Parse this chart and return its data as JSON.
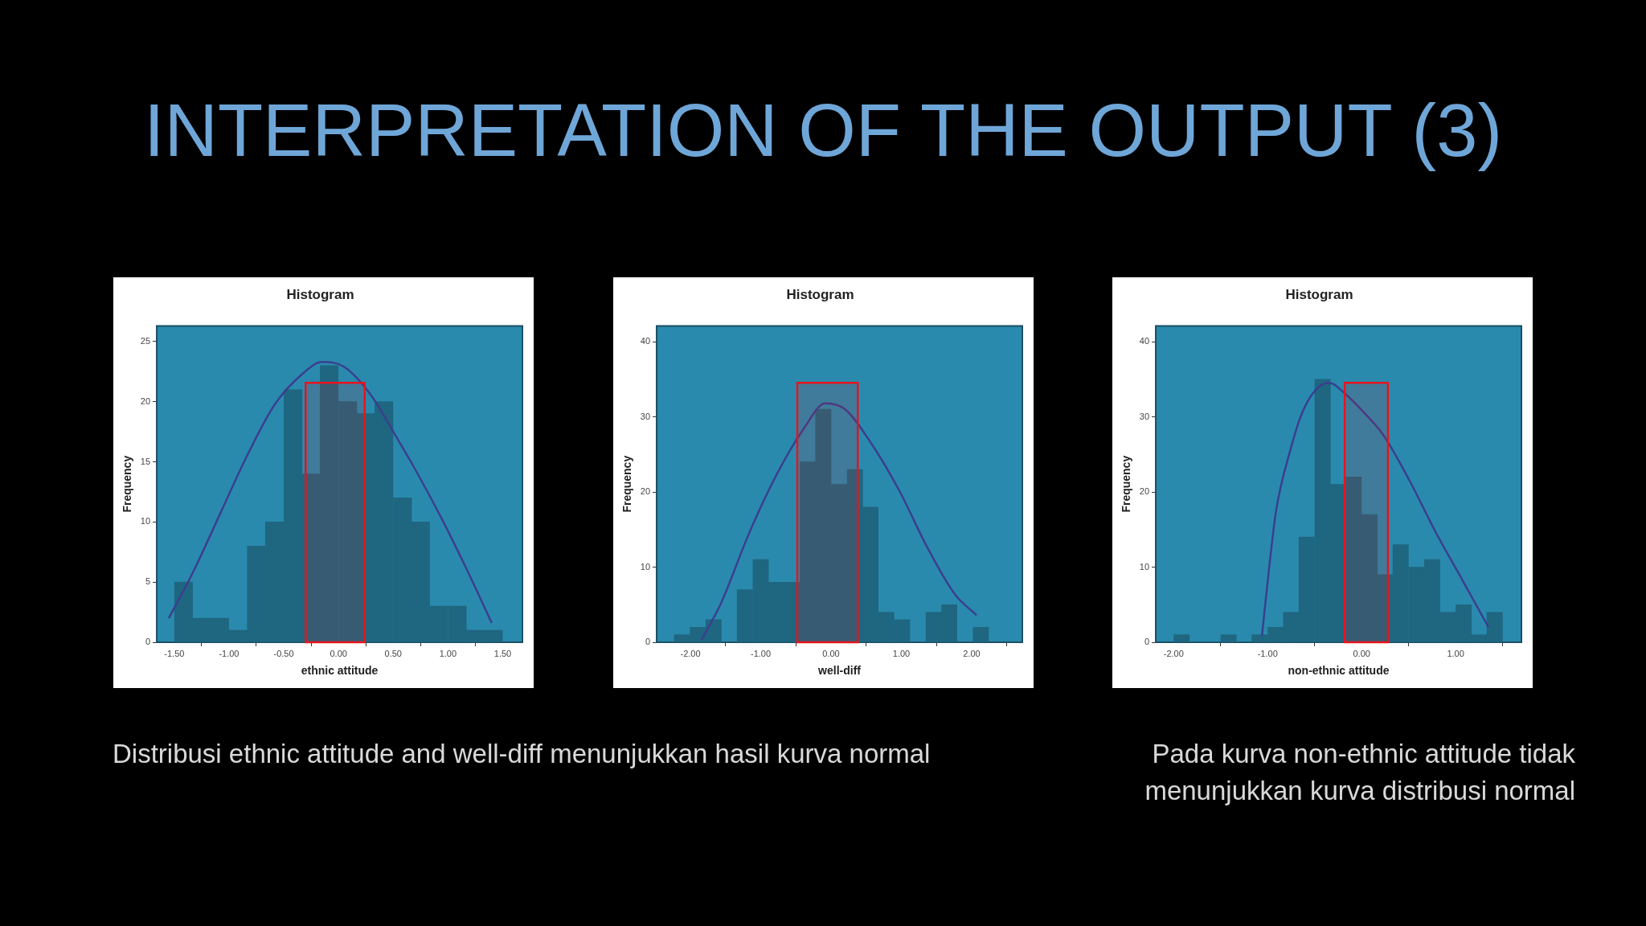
{
  "chart_data": [
    {
      "type": "histogram",
      "title": "Histogram",
      "xlabel": "ethnic attitude",
      "ylabel": "Frequency",
      "color": "#1f6680",
      "bins": [
        -1.5,
        -1.33,
        -1.17,
        -1.0,
        -0.83,
        -0.67,
        -0.5,
        -0.33,
        -0.17,
        0,
        0.17,
        0.33,
        0.5,
        0.67,
        0.83,
        1.0,
        1.17,
        1.33,
        1.5
      ],
      "values": [
        5,
        2,
        2,
        1,
        8,
        10,
        21,
        14,
        23,
        20,
        19,
        20,
        12,
        10,
        3,
        3,
        1,
        1
      ],
      "series": [
        {
          "type": "line",
          "color": "#3b3f8e",
          "x": [
            -1.55,
            -1.33,
            -1.08,
            -0.83,
            -0.58,
            -0.33,
            -0.15,
            0.05,
            0.3,
            0.52,
            0.68,
            0.93,
            1.18,
            1.4
          ],
          "values": [
            2.0,
            5.8,
            10.7,
            15.6,
            19.8,
            22.3,
            23.3,
            22.9,
            20.5,
            17.2,
            14.7,
            10.5,
            5.9,
            1.6
          ]
        }
      ],
      "xlim": [
        -1.66,
        1.68
      ],
      "xticks": [
        {
          "value": -1.5,
          "label": "-1.50"
        },
        {
          "value": -1,
          "label": "-1.00"
        },
        {
          "value": -0.5,
          "label": "-0.50"
        },
        {
          "value": 0,
          "label": "0.00"
        },
        {
          "value": 0.5,
          "label": "0.50"
        },
        {
          "value": 1,
          "label": "1.00"
        },
        {
          "value": 1.5,
          "label": "1.50"
        }
      ],
      "ylim": [
        0,
        26.3
      ],
      "yticks": [
        0,
        5,
        10,
        15,
        20,
        25
      ],
      "bands": [
        {
          "axis": "x",
          "from": -0.3,
          "to": 0.24,
          "color": "#e8141c"
        }
      ]
    },
    {
      "type": "histogram",
      "title": "Histogram",
      "xlabel": "well-diff",
      "ylabel": "Frequency",
      "color": "#1f6680",
      "bins": [
        -2.23,
        -2.01,
        -1.78,
        -1.56,
        -1.34,
        -1.11,
        -0.89,
        -0.67,
        -0.44,
        -0.22,
        0.0,
        0.23,
        0.45,
        0.67,
        0.9,
        1.12,
        1.35,
        1.57,
        1.79,
        2.02,
        2.24
      ],
      "values": [
        1,
        2,
        3,
        0,
        7,
        11,
        8,
        8,
        24,
        31,
        21,
        23,
        18,
        4,
        3,
        0,
        4,
        5,
        0,
        2
      ],
      "series": [
        {
          "type": "line",
          "color": "#3b3f8e",
          "x": [
            -1.84,
            -1.56,
            -1.17,
            -0.78,
            -0.39,
            -0.08,
            0.2,
            0.59,
            0.98,
            1.37,
            1.76,
            2.07
          ],
          "values": [
            0.3,
            5.3,
            14.4,
            22.2,
            28.4,
            31.8,
            31.0,
            26.2,
            20.0,
            12.6,
            6.4,
            3.6
          ]
        }
      ],
      "xlim": [
        -2.48,
        2.72
      ],
      "xticks": [
        {
          "value": -2,
          "label": "-2.00"
        },
        {
          "value": -1,
          "label": "-1.00"
        },
        {
          "value": 0,
          "label": "0.00"
        },
        {
          "value": 1,
          "label": "1.00"
        },
        {
          "value": 2,
          "label": "2.00"
        }
      ],
      "ylim": [
        0,
        42.1
      ],
      "yticks": [
        0,
        10,
        20,
        30,
        40
      ],
      "bands": [
        {
          "axis": "x",
          "from": -0.48,
          "to": 0.38,
          "color": "#e8141c"
        }
      ]
    },
    {
      "type": "histogram",
      "title": "Histogram",
      "xlabel": "non-ethnic attitude",
      "ylabel": "Frequency",
      "color": "#1f6680",
      "bins": [
        -2,
        -1.83,
        -1.67,
        -1.5,
        -1.33,
        -1.17,
        -1,
        -0.83,
        -0.67,
        -0.5,
        -0.33,
        -0.17,
        0,
        0.17,
        0.33,
        0.5,
        0.67,
        0.83,
        1,
        1.17,
        1.33,
        1.5
      ],
      "values": [
        1,
        0,
        0,
        1,
        0,
        1,
        2,
        4,
        14,
        35,
        21,
        22,
        17,
        9,
        13,
        10,
        11,
        4,
        5,
        1,
        4
      ],
      "series": [
        {
          "type": "line",
          "color": "#3b3f8e",
          "x": [
            -1.06,
            -0.99,
            -0.91,
            -0.76,
            -0.62,
            -0.42,
            -0.34,
            -0.17,
            0,
            0.23,
            0.51,
            0.79,
            1.08,
            1.35
          ],
          "values": [
            0.9,
            9.2,
            17.5,
            25.5,
            30.9,
            34.3,
            34.5,
            33.0,
            30.9,
            27.6,
            21.5,
            14.6,
            8.1,
            2.0
          ]
        }
      ],
      "xlim": [
        -2.19,
        1.7
      ],
      "xticks": [
        {
          "value": -2,
          "label": "-2.00"
        },
        {
          "value": -1,
          "label": "-1.00"
        },
        {
          "value": 0,
          "label": "0.00"
        },
        {
          "value": 1,
          "label": "1.00"
        }
      ],
      "ylim": [
        0,
        42.1
      ],
      "yticks": [
        0,
        10,
        20,
        30,
        40
      ],
      "bands": [
        {
          "axis": "x",
          "from": -0.18,
          "to": 0.28,
          "color": "#e8141c"
        }
      ]
    },
    {
      "type": "other",
      "title": "INTERPRETATION OF THE OUTPUT (3)",
      "annotations": [
        "Distribusi ethnic attitude and well-diff menunjukkan hasil kurva normal",
        "Pada kurva non-ethnic attitude tidak menunjukkan kurva distribusi normal"
      ]
    }
  ]
}
